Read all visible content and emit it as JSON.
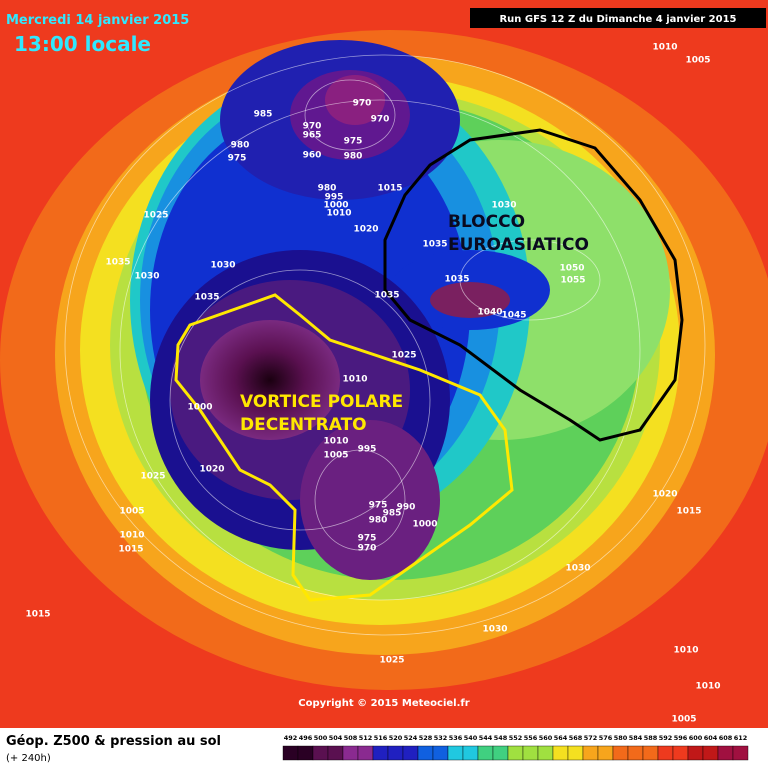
{
  "header": {
    "date": "Mercredi 14 janvier 2015",
    "time": "13:00 locale",
    "run": "Run GFS 12 Z du Dimanche 4 janvier 2015"
  },
  "map": {
    "isobar_labels": [
      "970",
      "970",
      "985",
      "970",
      "965",
      "980",
      "975",
      "960",
      "975",
      "980",
      "980",
      "995",
      "1000",
      "1010",
      "1015",
      "1020",
      "1025",
      "1035",
      "1030",
      "1030",
      "1035",
      "1035",
      "1035",
      "1035",
      "1040",
      "1045",
      "1050",
      "1055",
      "1030",
      "1025",
      "1010",
      "1000",
      "1010",
      "1005",
      "995",
      "975",
      "985",
      "990",
      "980",
      "1000",
      "975",
      "970",
      "1020",
      "1025",
      "1005",
      "1010",
      "1015",
      "1015",
      "1025",
      "1030",
      "1030",
      "1020",
      "1015",
      "1010",
      "1010",
      "1005",
      "1010",
      "1005"
    ],
    "annotations": {
      "block": [
        "BLOCCO",
        "EUROASIATICO"
      ],
      "vortex": [
        "VORTICE POLARE",
        "DECENTRATO"
      ]
    }
  },
  "footer": {
    "title": "Géop. Z500 & pression au sol",
    "lead": "(+ 240h)",
    "copyright": "Copyright © 2015 Meteociel.fr",
    "scale": [
      492,
      496,
      500,
      504,
      508,
      512,
      516,
      520,
      524,
      528,
      532,
      536,
      540,
      544,
      548,
      552,
      556,
      560,
      564,
      568,
      572,
      576,
      580,
      584,
      588,
      592,
      596,
      600,
      604,
      608,
      612
    ]
  }
}
